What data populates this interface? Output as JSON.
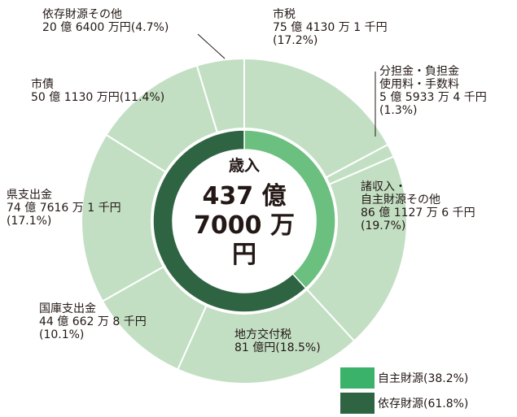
{
  "chart_data": {
    "type": "pie",
    "center": {
      "line1": "歳入",
      "line2": "437 億",
      "line3": "7000 万円"
    },
    "outer_ring": [
      {
        "name": "市税",
        "amount": "75 億 4130 万 1 千円",
        "percent_text": "(17.2%)",
        "value": 17.2
      },
      {
        "name": "分担金・負担金",
        "name2": "使用料・手数料",
        "amount": "5 億 5933 万 4 千円",
        "percent_text": "(1.3%)",
        "value": 1.3
      },
      {
        "name": "諸収入・",
        "name2": "自主財源その他",
        "amount": "86 億 1127 万 6 千円",
        "percent_text": "(19.7%)",
        "value": 19.7
      },
      {
        "name": "地方交付税",
        "amount": "81 億円(18.5%)",
        "value": 18.5
      },
      {
        "name": "国庫支出金",
        "amount": "44 億 662 万 8 千円",
        "percent_text": "(10.1%)",
        "value": 10.1
      },
      {
        "name": "県支出金",
        "amount": "74 億 7616 万 1 千円",
        "percent_text": "(17.1%)",
        "value": 17.1
      },
      {
        "name": "市債",
        "amount": "50 億 1130 万円(11.4%)",
        "value": 11.4
      },
      {
        "name": "依存財源その他",
        "amount": "20 億 6400 万円(4.7%)",
        "value": 4.7
      }
    ],
    "inner_ring": [
      {
        "name": "自主財源",
        "value": 38.2,
        "color": "#6bbf7f"
      },
      {
        "name": "依存財源",
        "value": 61.8,
        "color": "#2f6443"
      }
    ],
    "legend": [
      {
        "label": "自主財源(38.2%)",
        "color": "#3bb26a"
      },
      {
        "label": "依存財源(61.8%)",
        "color": "#2f6443"
      }
    ],
    "colors": {
      "outer": "#c2dfc3",
      "outer_border": "#ffffff"
    }
  }
}
